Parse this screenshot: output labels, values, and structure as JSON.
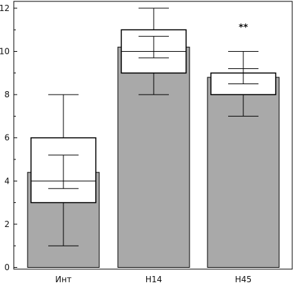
{
  "chart_data": {
    "type": "bar",
    "title": "",
    "xlabel": "",
    "ylabel": "",
    "ylim": [
      0,
      12.5
    ],
    "yticks": [
      0,
      2,
      4,
      6,
      8,
      10,
      12
    ],
    "grid": false,
    "categories": [
      "Инт",
      "Н14",
      "Н45"
    ],
    "bars": [
      {
        "category": "Инт",
        "value": 4.4,
        "color": "#a9a9a9"
      },
      {
        "category": "Н14",
        "value": 10.2,
        "color": "#a9a9a9"
      },
      {
        "category": "Н45",
        "value": 8.8,
        "color": "#a9a9a9"
      }
    ],
    "boxplots": [
      {
        "category": "Инт",
        "min": 1,
        "q1": 3,
        "median": 4,
        "q3": 6,
        "max": 8,
        "ci_low": 3.65,
        "ci_high": 5.2
      },
      {
        "category": "Н14",
        "min": 8,
        "q1": 9,
        "median": 10,
        "q3": 11,
        "max": 12,
        "ci_low": 9.7,
        "ci_high": 10.7
      },
      {
        "category": "Н45",
        "min": 7,
        "q1": 8,
        "median": 8,
        "q3": 9,
        "max": 10,
        "ci_low": 8.5,
        "ci_high": 9.2
      }
    ],
    "annotations": [
      {
        "category": "Н45",
        "text": "**",
        "y": 11.2
      }
    ]
  }
}
